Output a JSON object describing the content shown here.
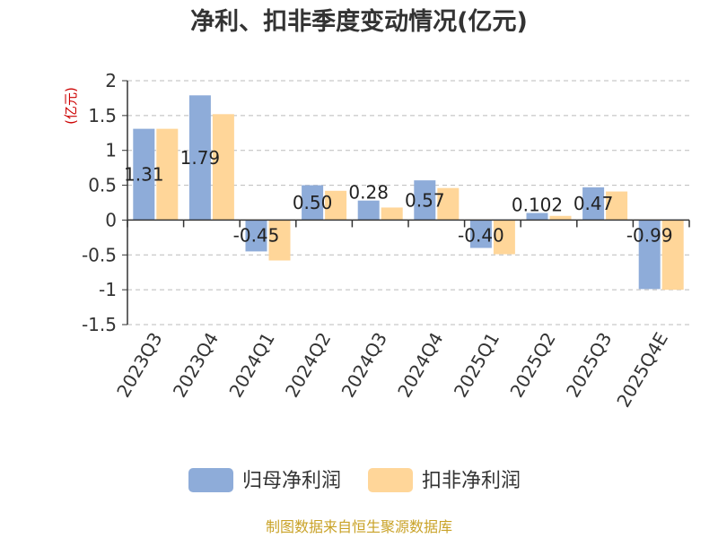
{
  "chart_data": {
    "type": "bar",
    "title": "净利、扣非季度变动情况(亿元)",
    "ylabel": "(亿元)",
    "ylim": [
      -1.5,
      2
    ],
    "yticks": [
      "2",
      "1.5",
      "1",
      "0.5",
      "0",
      "-0.5",
      "-1",
      "-1.5"
    ],
    "ytick_values": [
      2,
      1.5,
      1,
      0.5,
      0,
      -0.5,
      -1,
      -1.5
    ],
    "grid": true,
    "legend_position": "bottom",
    "categories": [
      "2023Q3",
      "2023Q4",
      "2024Q1",
      "2024Q2",
      "2024Q3",
      "2024Q4",
      "2025Q1",
      "2025Q2",
      "2025Q3",
      "2025Q4E"
    ],
    "series": [
      {
        "name": "归母净利润",
        "color": "#8eacd9",
        "values": [
          1.31,
          1.79,
          -0.45,
          0.5,
          0.28,
          0.57,
          -0.4,
          0.102,
          0.47,
          -0.99
        ],
        "labels": [
          "1.31",
          "1.79",
          "-0.45",
          "0.50",
          "0.28",
          "0.57",
          "-0.40",
          "0.102",
          "0.47",
          "-0.99"
        ]
      },
      {
        "name": "扣非净利润",
        "color": "#ffd699",
        "values": [
          1.31,
          1.52,
          -0.58,
          0.42,
          0.18,
          0.46,
          -0.49,
          0.06,
          0.41,
          -1.0
        ]
      }
    ]
  },
  "source": "制图数据来自恒生聚源数据库"
}
